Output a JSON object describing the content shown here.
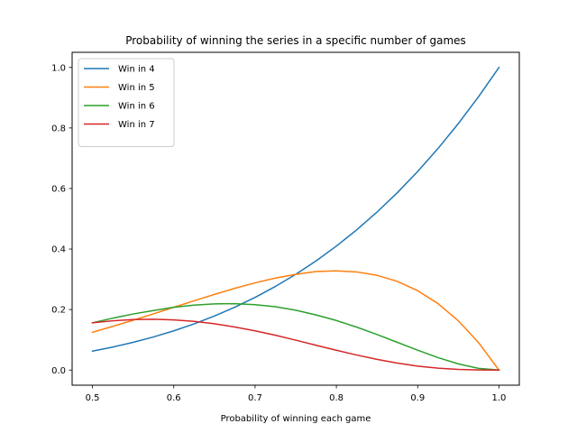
{
  "chart_data": {
    "type": "line",
    "title": "Probability of winning the series in a specific number of games",
    "xlabel": "Probability of winning each game",
    "ylabel": "",
    "xlim": [
      0.475,
      1.025
    ],
    "ylim": [
      -0.05,
      1.05
    ],
    "xticks": [
      0.5,
      0.6,
      0.7,
      0.8,
      0.9,
      1.0
    ],
    "xtick_labels": [
      "0.5",
      "0.6",
      "0.7",
      "0.8",
      "0.9",
      "1.0"
    ],
    "yticks": [
      0.0,
      0.2,
      0.4,
      0.6,
      0.8,
      1.0
    ],
    "ytick_labels": [
      "0.0",
      "0.2",
      "0.4",
      "0.6",
      "0.8",
      "1.0"
    ],
    "grid": false,
    "legend_position": "upper-left",
    "x": [
      0.5,
      0.525,
      0.55,
      0.575,
      0.6,
      0.625,
      0.65,
      0.675,
      0.7,
      0.725,
      0.75,
      0.775,
      0.8,
      0.825,
      0.85,
      0.875,
      0.9,
      0.925,
      0.95,
      0.975,
      1.0
    ],
    "series": [
      {
        "name": "Win in 4",
        "color": "#1f77b4",
        "values": [
          0.0625,
          0.076,
          0.0915,
          0.1093,
          0.1296,
          0.1526,
          0.1785,
          0.2076,
          0.2401,
          0.2763,
          0.3164,
          0.3607,
          0.4096,
          0.4633,
          0.522,
          0.5862,
          0.6561,
          0.732,
          0.8145,
          0.9037,
          1.0
        ]
      },
      {
        "name": "Win in 5",
        "color": "#ff7f0e",
        "values": [
          0.125,
          0.1445,
          0.1647,
          0.1856,
          0.2074,
          0.2289,
          0.2499,
          0.27,
          0.2881,
          0.304,
          0.3164,
          0.3256,
          0.3277,
          0.3243,
          0.3132,
          0.2931,
          0.2624,
          0.2196,
          0.1629,
          0.0904,
          0.0
        ]
      },
      {
        "name": "Win in 6",
        "color": "#2ca02c",
        "values": [
          0.15625,
          0.1715,
          0.1853,
          0.1968,
          0.2074,
          0.2146,
          0.2187,
          0.2194,
          0.2161,
          0.2092,
          0.1978,
          0.1822,
          0.1638,
          0.1419,
          0.1175,
          0.0916,
          0.0656,
          0.0412,
          0.0204,
          0.0056,
          0.0
        ]
      },
      {
        "name": "Win in 7",
        "color": "#d62728",
        "values": [
          0.15625,
          0.1628,
          0.1667,
          0.1679,
          0.1659,
          0.1609,
          0.1531,
          0.1423,
          0.1296,
          0.1151,
          0.0989,
          0.082,
          0.0655,
          0.0497,
          0.0352,
          0.0229,
          0.0131,
          0.0061,
          0.002,
          0.0003,
          0.0
        ]
      }
    ]
  }
}
